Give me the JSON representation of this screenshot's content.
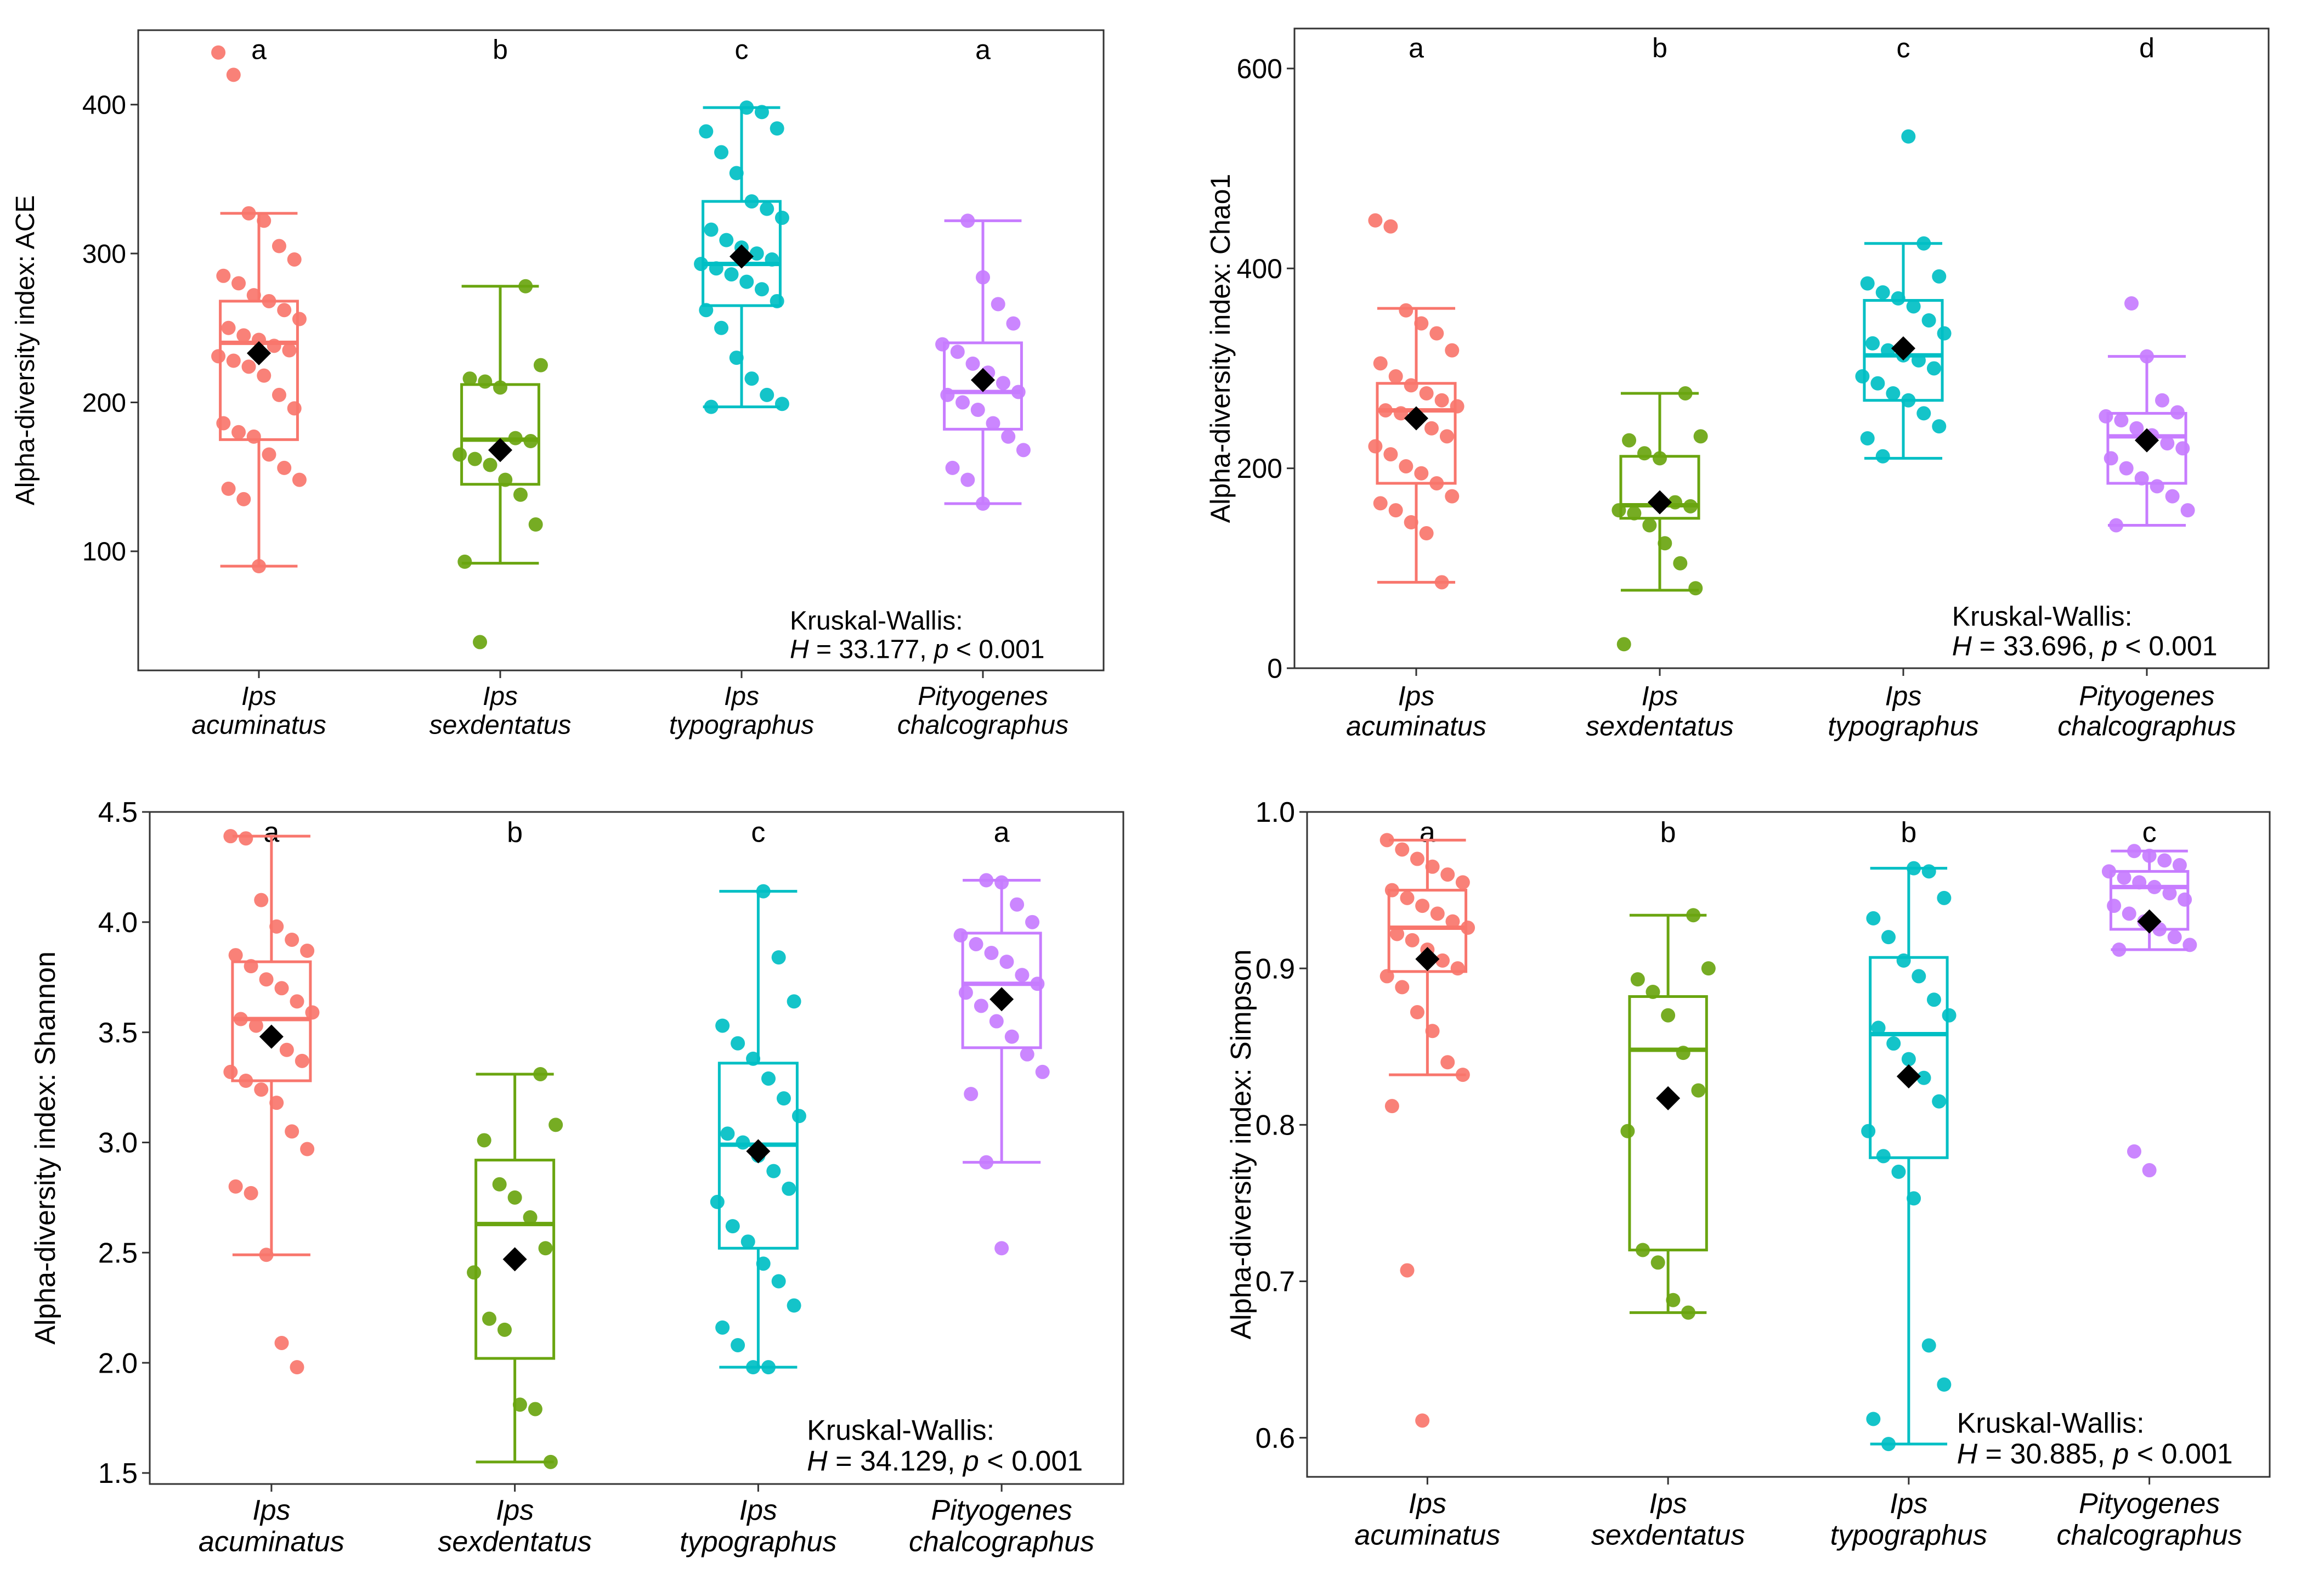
{
  "colors": {
    "Ips acuminatus": "#f8766d",
    "Ips sexdentatus": "#6aa510",
    "Ips typographus": "#00bfc4",
    "Pityogenes chalcographus": "#c77cff",
    "mean": "#000000",
    "axis": "#333333",
    "text": "#000000"
  },
  "chart_data": [
    {
      "type": "box",
      "panel": "top-left",
      "ylabel": "Alpha-diversity index: ACE",
      "ylim": [
        20,
        450
      ],
      "yticks": [
        100,
        200,
        300,
        400
      ],
      "categories": [
        [
          "Ips",
          "acuminatus"
        ],
        [
          "Ips",
          "sexdentatus"
        ],
        [
          "Ips",
          "typographus"
        ],
        [
          "Pityogenes",
          "chalcographus"
        ]
      ],
      "letters": [
        "a",
        "b",
        "c",
        "a"
      ],
      "annotation": {
        "line1": "Kruskal-Wallis:",
        "h_label": "H",
        "h_value": " = 33.177, ",
        "p_label": "p",
        "p_value": " < 0.001"
      },
      "boxes": [
        {
          "q1": 175,
          "median": 240,
          "q3": 268,
          "whisker_low": 90,
          "whisker_high": 327,
          "mean": 233,
          "points": [
            435,
            420,
            327,
            322,
            305,
            296,
            285,
            280,
            272,
            268,
            262,
            256,
            250,
            245,
            242,
            238,
            235,
            231,
            228,
            224,
            218,
            205,
            196,
            186,
            180,
            177,
            165,
            156,
            148,
            142,
            135,
            90
          ]
        },
        {
          "q1": 145,
          "median": 175,
          "q3": 212,
          "whisker_low": 92,
          "whisker_high": 278,
          "mean": 168,
          "points": [
            278,
            225,
            216,
            214,
            210,
            176,
            174,
            165,
            162,
            158,
            148,
            138,
            118,
            93,
            39
          ]
        },
        {
          "q1": 265,
          "median": 293,
          "q3": 335,
          "whisker_low": 197,
          "whisker_high": 398,
          "mean": 298,
          "points": [
            398,
            395,
            384,
            382,
            368,
            354,
            335,
            330,
            324,
            316,
            309,
            304,
            300,
            296,
            293,
            290,
            286,
            281,
            276,
            268,
            262,
            250,
            230,
            216,
            205,
            199,
            197
          ]
        },
        {
          "q1": 182,
          "median": 207,
          "q3": 240,
          "whisker_low": 132,
          "whisker_high": 322,
          "mean": 215,
          "points": [
            322,
            284,
            266,
            253,
            239,
            234,
            226,
            220,
            213,
            207,
            205,
            200,
            195,
            186,
            177,
            168,
            156,
            148,
            132
          ]
        }
      ]
    },
    {
      "type": "box",
      "panel": "top-right",
      "ylabel": "Alpha-diversity index: Chao1",
      "ylim": [
        0,
        640
      ],
      "yticks": [
        0,
        200,
        400,
        600
      ],
      "categories": [
        [
          "Ips",
          "acuminatus"
        ],
        [
          "Ips",
          "sexdentatus"
        ],
        [
          "Ips",
          "typographus"
        ],
        [
          "Pityogenes",
          "chalcographus"
        ]
      ],
      "letters": [
        "a",
        "b",
        "c",
        "d"
      ],
      "annotation": {
        "line1": "Kruskal-Wallis:",
        "h_label": "H",
        "h_value": " = 33.696, ",
        "p_label": "p",
        "p_value": " < 0.001"
      },
      "boxes": [
        {
          "q1": 185,
          "median": 258,
          "q3": 285,
          "whisker_low": 86,
          "whisker_high": 360,
          "mean": 250,
          "points": [
            448,
            442,
            358,
            345,
            335,
            318,
            305,
            292,
            283,
            275,
            268,
            262,
            258,
            255,
            248,
            240,
            232,
            222,
            214,
            202,
            195,
            185,
            172,
            165,
            158,
            146,
            135,
            86
          ]
        },
        {
          "q1": 150,
          "median": 163,
          "q3": 212,
          "whisker_low": 78,
          "whisker_high": 275,
          "mean": 166,
          "points": [
            275,
            232,
            228,
            215,
            210,
            166,
            162,
            158,
            155,
            143,
            125,
            105,
            80,
            24
          ]
        },
        {
          "q1": 268,
          "median": 313,
          "q3": 368,
          "whisker_low": 210,
          "whisker_high": 425,
          "mean": 320,
          "points": [
            532,
            425,
            392,
            385,
            376,
            370,
            362,
            348,
            335,
            325,
            318,
            313,
            308,
            300,
            292,
            285,
            275,
            268,
            255,
            242,
            230,
            212
          ]
        },
        {
          "q1": 185,
          "median": 232,
          "q3": 255,
          "whisker_low": 143,
          "whisker_high": 312,
          "mean": 228,
          "points": [
            365,
            312,
            268,
            256,
            252,
            248,
            240,
            233,
            225,
            220,
            210,
            200,
            190,
            182,
            172,
            158,
            143
          ]
        }
      ]
    },
    {
      "type": "box",
      "panel": "bottom-left",
      "ylabel": "Alpha-diversity index: Shannon",
      "ylim": [
        1.45,
        4.5
      ],
      "yticks": [
        1.5,
        2.0,
        2.5,
        3.0,
        3.5,
        4.0,
        4.5
      ],
      "ytickLabels": [
        "1.5",
        "2.0",
        "2.5",
        "3.0",
        "3.5",
        "4.0",
        "4.5"
      ],
      "categories": [
        [
          "Ips",
          "acuminatus"
        ],
        [
          "Ips",
          "sexdentatus"
        ],
        [
          "Ips",
          "typographus"
        ],
        [
          "Pityogenes",
          "chalcographus"
        ]
      ],
      "letters": [
        "a",
        "b",
        "c",
        "a"
      ],
      "annotation": {
        "line1": "Kruskal-Wallis:",
        "h_label": "H",
        "h_value": " = 34.129, ",
        "p_label": "p",
        "p_value": " < 0.001"
      },
      "boxes": [
        {
          "q1": 3.28,
          "median": 3.56,
          "q3": 3.82,
          "whisker_low": 2.49,
          "whisker_high": 4.39,
          "mean": 3.48,
          "points": [
            4.39,
            4.38,
            4.1,
            3.98,
            3.92,
            3.87,
            3.85,
            3.8,
            3.74,
            3.7,
            3.64,
            3.59,
            3.56,
            3.53,
            3.48,
            3.42,
            3.37,
            3.32,
            3.28,
            3.24,
            3.18,
            3.05,
            2.97,
            2.8,
            2.77,
            2.49,
            2.09,
            1.98
          ]
        },
        {
          "q1": 2.02,
          "median": 2.63,
          "q3": 2.92,
          "whisker_low": 1.55,
          "whisker_high": 3.31,
          "mean": 2.47,
          "points": [
            3.31,
            3.08,
            3.01,
            2.81,
            2.75,
            2.66,
            2.52,
            2.41,
            2.2,
            2.15,
            1.81,
            1.79,
            1.55
          ]
        },
        {
          "q1": 2.52,
          "median": 2.99,
          "q3": 3.36,
          "whisker_low": 1.98,
          "whisker_high": 4.14,
          "mean": 2.96,
          "points": [
            4.14,
            3.84,
            3.64,
            3.53,
            3.45,
            3.38,
            3.29,
            3.2,
            3.12,
            3.04,
            3.0,
            2.94,
            2.87,
            2.79,
            2.73,
            2.62,
            2.55,
            2.45,
            2.37,
            2.26,
            2.16,
            2.08,
            1.98,
            1.98
          ]
        },
        {
          "q1": 3.43,
          "median": 3.72,
          "q3": 3.95,
          "whisker_low": 2.91,
          "whisker_high": 4.19,
          "mean": 3.65,
          "points": [
            4.19,
            4.18,
            4.08,
            4.0,
            3.94,
            3.9,
            3.86,
            3.82,
            3.76,
            3.72,
            3.68,
            3.62,
            3.55,
            3.48,
            3.4,
            3.32,
            3.22,
            2.91,
            2.52
          ]
        }
      ]
    },
    {
      "type": "box",
      "panel": "bottom-right",
      "ylabel": "Alpha-diversity index: Simpson",
      "ylim": [
        0.575,
        1.0
      ],
      "yticks": [
        0.6,
        0.7,
        0.8,
        0.9,
        1.0
      ],
      "ytickLabels": [
        "0.6",
        "0.7",
        "0.8",
        "0.9",
        "1.0"
      ],
      "categories": [
        [
          "Ips",
          "acuminatus"
        ],
        [
          "Ips",
          "sexdentatus"
        ],
        [
          "Ips",
          "typographus"
        ],
        [
          "Pityogenes",
          "chalcographus"
        ]
      ],
      "letters": [
        "a",
        "b",
        "b",
        "c"
      ],
      "annotation": {
        "line1": "Kruskal-Wallis:",
        "h_label": "H",
        "h_value": " = 30.885, ",
        "p_label": "p",
        "p_value": " < 0.001"
      },
      "boxes": [
        {
          "q1": 0.898,
          "median": 0.926,
          "q3": 0.95,
          "whisker_low": 0.832,
          "whisker_high": 0.982,
          "mean": 0.906,
          "points": [
            0.982,
            0.976,
            0.97,
            0.965,
            0.96,
            0.955,
            0.95,
            0.945,
            0.94,
            0.935,
            0.93,
            0.926,
            0.922,
            0.918,
            0.912,
            0.905,
            0.9,
            0.895,
            0.888,
            0.872,
            0.86,
            0.84,
            0.832,
            0.812,
            0.707,
            0.611
          ]
        },
        {
          "q1": 0.72,
          "median": 0.848,
          "q3": 0.882,
          "whisker_low": 0.68,
          "whisker_high": 0.934,
          "mean": 0.817,
          "points": [
            0.934,
            0.9,
            0.893,
            0.885,
            0.87,
            0.846,
            0.822,
            0.796,
            0.72,
            0.712,
            0.688,
            0.68
          ]
        },
        {
          "q1": 0.779,
          "median": 0.858,
          "q3": 0.907,
          "whisker_low": 0.596,
          "whisker_high": 0.964,
          "mean": 0.831,
          "points": [
            0.964,
            0.962,
            0.945,
            0.932,
            0.92,
            0.905,
            0.895,
            0.88,
            0.87,
            0.862,
            0.852,
            0.842,
            0.83,
            0.815,
            0.796,
            0.78,
            0.77,
            0.753,
            0.659,
            0.634,
            0.612,
            0.596
          ]
        },
        {
          "q1": 0.925,
          "median": 0.952,
          "q3": 0.962,
          "whisker_low": 0.912,
          "whisker_high": 0.975,
          "mean": 0.93,
          "points": [
            0.975,
            0.972,
            0.969,
            0.966,
            0.962,
            0.958,
            0.955,
            0.952,
            0.948,
            0.944,
            0.94,
            0.935,
            0.93,
            0.925,
            0.92,
            0.915,
            0.912,
            0.783,
            0.771
          ]
        }
      ]
    }
  ]
}
